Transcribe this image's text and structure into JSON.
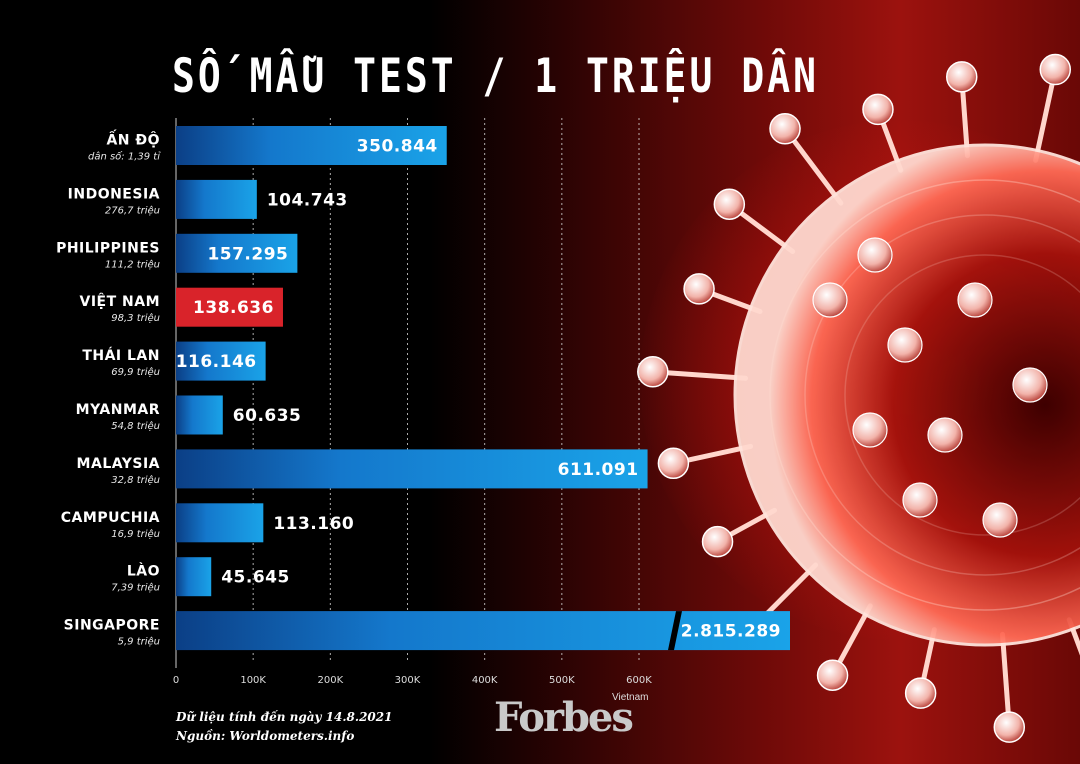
{
  "title": "SỐ MẪU TEST / 1 TRIỆU DÂN",
  "chart_data": {
    "type": "bar",
    "orientation": "horizontal",
    "title": "SỐ MẪU TEST / 1 TRIỆU DÂN",
    "categories": [
      "ẤN ĐỘ",
      "INDONESIA",
      "PHILIPPINES",
      "VIỆT NAM",
      "THÁI LAN",
      "MYANMAR",
      "MALAYSIA",
      "CAMPUCHIA",
      "LÀO",
      "SINGAPORE"
    ],
    "populations": [
      "dân số: 1,39 tỉ",
      "276,7 triệu",
      "111,2 triệu",
      "98,3 triệu",
      "69,9 triệu",
      "54,8 triệu",
      "32,8 triệu",
      "16,9 triệu",
      "7,39 triệu",
      "5,9 triệu"
    ],
    "values": [
      350844,
      104743,
      157295,
      138636,
      116146,
      60635,
      611091,
      113160,
      45645,
      2815289
    ],
    "value_labels": [
      "350.844",
      "104.743",
      "157.295",
      "138.636",
      "116.146",
      "60.635",
      "611.091",
      "113.160",
      "45.645",
      "2.815.289"
    ],
    "highlight": "VIỆT NAM",
    "xlim": [
      0,
      600000
    ],
    "xticks": [
      "0",
      "100K",
      "200K",
      "300K",
      "400K",
      "500K",
      "600K"
    ],
    "axis_break": "SINGAPORE",
    "grid": true,
    "colors": {
      "bar": "#1aa3e8",
      "bar_dark": "#0b3f86",
      "highlight": "#d9232a"
    }
  },
  "footnote": {
    "line1": "Dữ liệu tính đến ngày 14.8.2021",
    "line2": "Nguồn: Worldometers.info"
  },
  "logo": {
    "brand": "Forbes",
    "edition": "Vietnam"
  }
}
